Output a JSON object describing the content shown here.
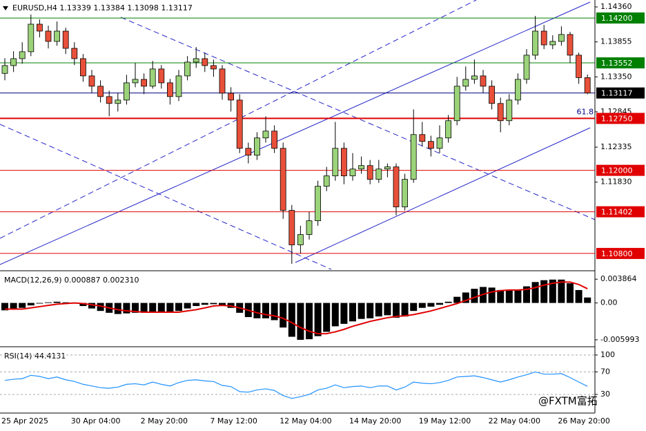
{
  "chart_data": [
    {
      "type": "candlestick",
      "title": "EURUSD,H4 1.13339 1.13384 1.13098 1.13117",
      "categories": [
        "25 Apr 2025",
        null,
        null,
        null,
        null,
        null,
        null,
        null,
        "30 Apr 04:00",
        null,
        null,
        null,
        null,
        null,
        null,
        null,
        "2 May 20:00",
        null,
        null,
        null,
        null,
        null,
        null,
        null,
        "7 May 12:00",
        null,
        null,
        null,
        null,
        null,
        null,
        null,
        "12 May 04:00",
        null,
        null,
        null,
        null,
        null,
        null,
        null,
        "14 May 20:00",
        null,
        null,
        null,
        null,
        null,
        null,
        null,
        "19 May 12:00",
        null,
        null,
        null,
        null,
        null,
        null,
        null,
        "22 May 04:00",
        null,
        null,
        null,
        null,
        null,
        null,
        null,
        "26 May 20:00",
        null,
        null,
        null
      ],
      "open": [
        1.134,
        1.13513,
        1.13613,
        1.13713,
        1.14111,
        1.14011,
        1.13862,
        1.14011,
        1.13762,
        1.13613,
        1.13364,
        1.13215,
        1.13065,
        1.12966,
        1.13015,
        1.13264,
        1.13314,
        1.13215,
        1.13464,
        1.13264,
        1.13065,
        1.13364,
        1.13563,
        1.13613,
        1.13513,
        1.13464,
        1.13115,
        1.13015,
        1.12318,
        1.12219,
        1.12468,
        1.12567,
        1.12318,
        1.11422,
        1.10924,
        1.11073,
        1.11272,
        1.1177,
        1.1192,
        1.12318,
        1.1192,
        1.12019,
        1.12069,
        1.1187,
        1.12019,
        1.1205,
        1.11472,
        1.1187,
        1.12517,
        1.12418,
        1.12318,
        1.12468,
        1.12717,
        1.13215,
        1.13314,
        1.13364,
        1.13215,
        1.12966,
        1.12717,
        1.13015,
        1.13314,
        1.13663,
        1.14011,
        1.13812,
        1.13862,
        1.13962,
        1.13663,
        1.13339
      ],
      "high": [
        1.1362,
        1.1372,
        1.1385,
        1.1425,
        1.1418,
        1.1409,
        1.1415,
        1.1406,
        1.1385,
        1.1368,
        1.1345,
        1.133,
        1.1315,
        1.1312,
        1.1338,
        1.1355,
        1.134,
        1.1358,
        1.1352,
        1.1332,
        1.1345,
        1.1365,
        1.1378,
        1.137,
        1.136,
        1.1352,
        1.132,
        1.131,
        1.124,
        1.1255,
        1.1278,
        1.1265,
        1.124,
        1.115,
        1.112,
        1.114,
        1.1185,
        1.1205,
        1.127,
        1.124,
        1.1225,
        1.122,
        1.1215,
        1.1215,
        1.121,
        1.121,
        1.1195,
        1.1288,
        1.127,
        1.125,
        1.1265,
        1.128,
        1.1335,
        1.135,
        1.136,
        1.1345,
        1.133,
        1.1305,
        1.131,
        1.134,
        1.1375,
        1.1423,
        1.141,
        1.1395,
        1.1408,
        1.14,
        1.137,
        1.13384
      ],
      "low": [
        1.133,
        1.1342,
        1.1354,
        1.1365,
        1.1392,
        1.1376,
        1.138,
        1.1368,
        1.1352,
        1.1328,
        1.1312,
        1.1298,
        1.1278,
        1.1285,
        1.1295,
        1.132,
        1.131,
        1.1318,
        1.1318,
        1.1295,
        1.13,
        1.133,
        1.1348,
        1.1342,
        1.1335,
        1.1302,
        1.1285,
        1.1225,
        1.121,
        1.1215,
        1.124,
        1.1225,
        1.113,
        1.1065,
        1.108,
        1.11,
        1.112,
        1.117,
        1.1185,
        1.118,
        1.1185,
        1.1195,
        1.118,
        1.1182,
        1.119,
        1.1135,
        1.1142,
        1.1182,
        1.1235,
        1.122,
        1.1225,
        1.124,
        1.1265,
        1.1315,
        1.1325,
        1.1312,
        1.1288,
        1.1255,
        1.1265,
        1.1295,
        1.1325,
        1.136,
        1.1375,
        1.1375,
        1.138,
        1.1355,
        1.1325,
        1.13098
      ],
      "close": [
        1.13513,
        1.13613,
        1.13713,
        1.14111,
        1.14011,
        1.13862,
        1.14011,
        1.13762,
        1.13613,
        1.13364,
        1.13215,
        1.13065,
        1.12966,
        1.13015,
        1.13264,
        1.13314,
        1.13215,
        1.13464,
        1.13264,
        1.13065,
        1.13364,
        1.13563,
        1.13613,
        1.13513,
        1.13464,
        1.13115,
        1.13015,
        1.12318,
        1.12219,
        1.12468,
        1.12567,
        1.12318,
        1.11422,
        1.10924,
        1.11073,
        1.11272,
        1.1177,
        1.1192,
        1.12318,
        1.1192,
        1.12019,
        1.12069,
        1.1187,
        1.12019,
        1.1205,
        1.11472,
        1.1187,
        1.12517,
        1.12418,
        1.12318,
        1.12468,
        1.12717,
        1.13215,
        1.13314,
        1.13364,
        1.13215,
        1.12966,
        1.12717,
        1.13015,
        1.13314,
        1.13663,
        1.14011,
        1.13812,
        1.13862,
        1.13962,
        1.13663,
        1.13339,
        1.13117
      ],
      "up_color": "#9bd37a",
      "down_color": "#e8503a",
      "ylim": [
        1.1055,
        1.1446
      ],
      "yticks": [
        {
          "value": 1.1436,
          "label": "1.14360"
        },
        {
          "value": 1.13855,
          "label": "1.13855"
        },
        {
          "value": 1.1335,
          "label": "1.13350"
        },
        {
          "value": 1.12845,
          "label": "1.12845"
        },
        {
          "value": 1.12335,
          "label": "1.12335"
        },
        {
          "value": 1.1183,
          "label": "1.11830"
        }
      ],
      "levels": [
        {
          "value": 1.142,
          "label": "1.14200",
          "color": "#008000"
        },
        {
          "value": 1.13552,
          "label": "1.13552",
          "color": "#008000"
        },
        {
          "value": 1.13117,
          "label": "1.13117",
          "color": "#000000"
        },
        {
          "value": 1.1275,
          "label": "1.12750",
          "color": "#e00000"
        },
        {
          "value": 1.12,
          "label": "1.12000",
          "color": "#e00000"
        },
        {
          "value": 1.11402,
          "label": "1.11402",
          "color": "#e00000"
        },
        {
          "value": 1.108,
          "label": "1.10800",
          "color": "#e00000"
        }
      ],
      "annotation": "61.8"
    },
    {
      "type": "macd",
      "title": "MACD(12,26,9) 0.000887 0.002310",
      "series": [
        {
          "name": "histogram",
          "color": "#000000",
          "values": [
            -0.0012,
            -0.001,
            -0.0008,
            -0.0004,
            -0.0001,
            0.0001,
            0.0002,
            0.0001,
            -0.0001,
            -0.0005,
            -0.0009,
            -0.0013,
            -0.0016,
            -0.0018,
            -0.0017,
            -0.0016,
            -0.0016,
            -0.0014,
            -0.0014,
            -0.0016,
            -0.0013,
            -0.0009,
            -0.0005,
            -0.0003,
            -0.0002,
            -0.0005,
            -0.0008,
            -0.0016,
            -0.0023,
            -0.0025,
            -0.0025,
            -0.0028,
            -0.004,
            -0.0055,
            -0.006,
            -0.0059,
            -0.0054,
            -0.0047,
            -0.0038,
            -0.0034,
            -0.003,
            -0.0026,
            -0.0025,
            -0.0022,
            -0.002,
            -0.0024,
            -0.0022,
            -0.0013,
            -0.0008,
            -0.0006,
            -0.0003,
            0.0002,
            0.001,
            0.0017,
            0.0023,
            0.0026,
            0.0025,
            0.0021,
            0.002,
            0.0022,
            0.0027,
            0.0034,
            0.0037,
            0.0038,
            0.0038,
            0.0032,
            0.0021,
            0.000887
          ]
        },
        {
          "name": "signal",
          "color": "#e00000",
          "values": [
            -0.001,
            -0.001,
            -0.001,
            -0.0008,
            -0.0006,
            -0.0004,
            -0.0002,
            -0.0001,
            0,
            -0.0001,
            -0.0003,
            -0.0005,
            -0.0008,
            -0.0011,
            -0.0013,
            -0.0014,
            -0.0015,
            -0.0015,
            -0.0015,
            -0.0015,
            -0.0015,
            -0.0013,
            -0.0011,
            -0.0008,
            -0.0005,
            -0.0004,
            -0.0005,
            -0.0008,
            -0.0012,
            -0.0016,
            -0.0019,
            -0.0021,
            -0.0025,
            -0.0032,
            -0.004,
            -0.0046,
            -0.005,
            -0.005,
            -0.0047,
            -0.0043,
            -0.0038,
            -0.0034,
            -0.003,
            -0.0027,
            -0.0024,
            -0.0022,
            -0.0021,
            -0.0019,
            -0.0016,
            -0.0013,
            -0.0009,
            -0.0005,
            -0.0001,
            0.0004,
            0.0009,
            0.0014,
            0.0018,
            0.002,
            0.0021,
            0.0021,
            0.0022,
            0.0025,
            0.0029,
            0.0032,
            0.0034,
            0.0034,
            0.003,
            0.00231
          ]
        }
      ],
      "ylim": [
        -0.0069,
        0.0049
      ],
      "yticks": [
        0.003864,
        {
          "value": 0,
          "label": "0.00"
        },
        -0.005993
      ]
    },
    {
      "type": "line",
      "title": "RSI(14) 44.4131",
      "series": [
        {
          "name": "RSI",
          "color": "#1e90ff",
          "values": [
            55,
            57,
            58,
            64,
            62,
            58,
            61,
            56,
            53,
            48,
            45,
            42,
            41,
            43,
            48,
            49,
            47,
            52,
            48,
            45,
            51,
            55,
            56,
            54,
            53,
            46,
            44,
            35,
            34,
            38,
            40,
            37,
            28,
            23,
            26,
            30,
            38,
            41,
            47,
            42,
            44,
            45,
            42,
            45,
            45,
            38,
            43,
            52,
            50,
            49,
            51,
            55,
            61,
            62,
            63,
            60,
            56,
            52,
            56,
            61,
            65,
            70,
            66,
            66,
            67,
            60,
            52,
            44.4131
          ]
        }
      ],
      "ylim": [
        -3,
        111
      ],
      "yticks": [
        100,
        70,
        30
      ],
      "grid": true
    }
  ],
  "watermark": "@FXTM富拓"
}
